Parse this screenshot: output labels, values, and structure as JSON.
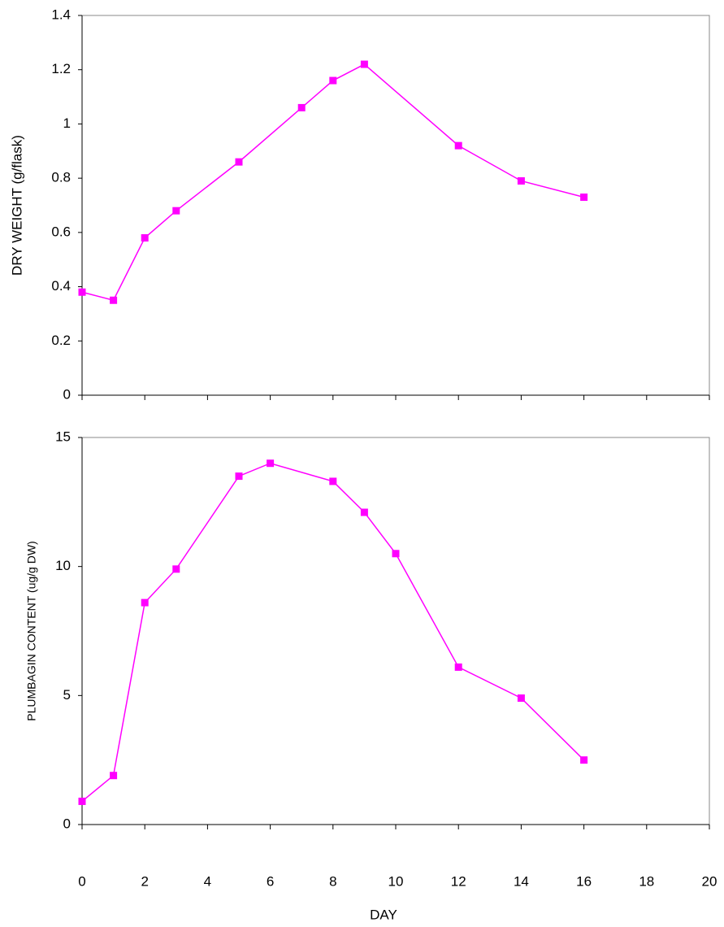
{
  "chart_data": [
    {
      "type": "line",
      "y_label": "DRY WEIGHT (g/flask)",
      "x": [
        0,
        1,
        2,
        3,
        5,
        7,
        8,
        9,
        12,
        14,
        16
      ],
      "values": [
        0.38,
        0.35,
        0.58,
        0.68,
        0.86,
        1.06,
        1.16,
        1.22,
        0.92,
        0.79,
        0.73
      ],
      "color": "#ff00ff",
      "xlim": [
        0,
        20
      ],
      "xticks": [
        0,
        2,
        4,
        6,
        8,
        10,
        12,
        14,
        16,
        18,
        20
      ],
      "ylim": [
        0,
        1.4
      ],
      "yticks": [
        0,
        0.2,
        0.4,
        0.6,
        0.8,
        1,
        1.2,
        1.4
      ]
    },
    {
      "type": "line",
      "y_label": "PLUMBAGIN CONTENT (ug/g DW)",
      "x_label": "DAY",
      "x": [
        0,
        1,
        2,
        3,
        5,
        6,
        8,
        9,
        10,
        12,
        14,
        16
      ],
      "values": [
        0.9,
        1.9,
        8.6,
        9.9,
        13.5,
        14.0,
        13.3,
        12.1,
        10.5,
        6.1,
        4.9,
        2.5
      ],
      "color": "#ff00ff",
      "xlim": [
        0,
        20
      ],
      "xticks": [
        0,
        2,
        4,
        6,
        8,
        10,
        12,
        14,
        16,
        18,
        20
      ],
      "ylim": [
        0,
        15
      ],
      "yticks": [
        0,
        5,
        10,
        15
      ]
    }
  ]
}
